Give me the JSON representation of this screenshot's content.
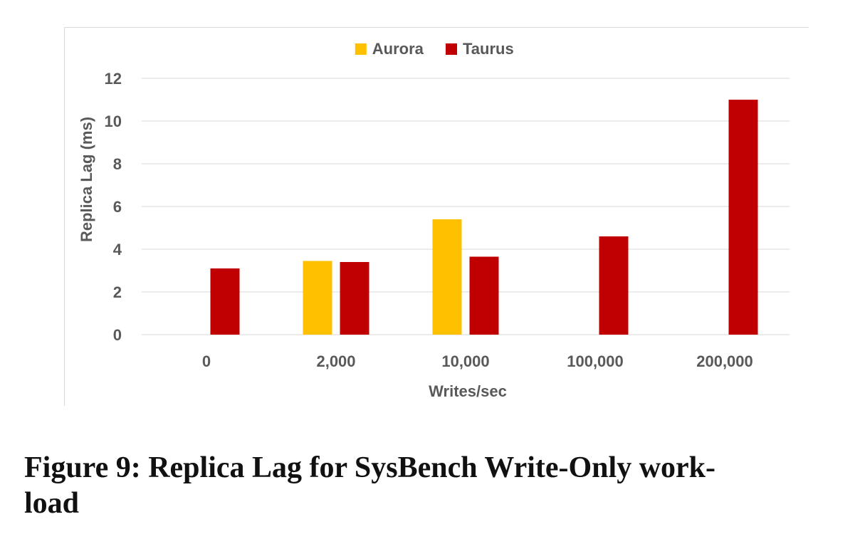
{
  "caption": "Figure 9: Replica Lag for SysBench Write-Only work-load",
  "caption_lines": [
    "Figure 9: Replica Lag for SysBench Write-Only work-",
    "load"
  ],
  "chart_data": {
    "type": "bar",
    "categories": [
      "0",
      "2,000",
      "10,000",
      "100,000",
      "200,000"
    ],
    "series": [
      {
        "name": "Aurora",
        "color": "#FFC000",
        "values": [
          null,
          3.45,
          5.4,
          null,
          null
        ]
      },
      {
        "name": "Taurus",
        "color": "#C00000",
        "values": [
          3.1,
          3.4,
          3.65,
          4.6,
          11.0
        ]
      }
    ],
    "xlabel": "Writes/sec",
    "ylabel": "Replica Lag (ms)",
    "ylim": [
      0,
      12
    ],
    "yticks": [
      "0",
      "2",
      "4",
      "6",
      "8",
      "10",
      "12"
    ],
    "grid": true,
    "legend_position": "top-center"
  }
}
